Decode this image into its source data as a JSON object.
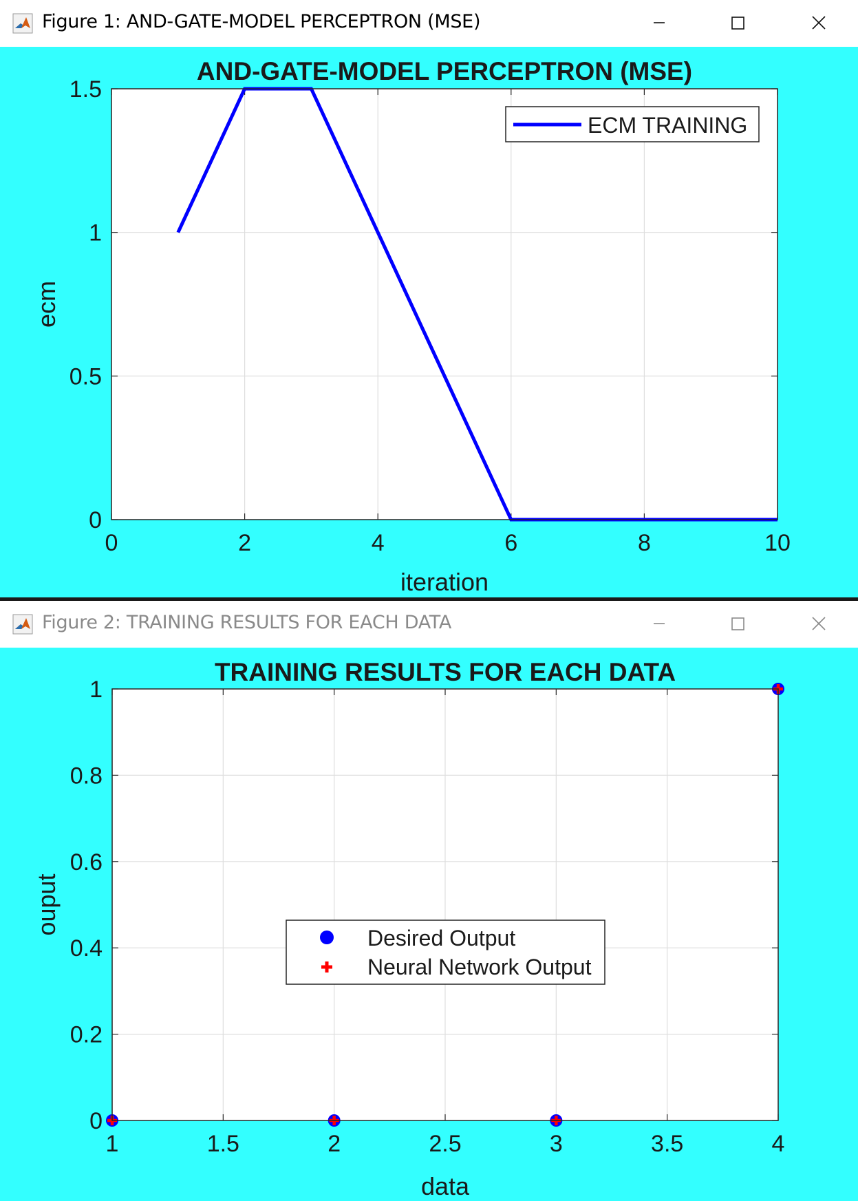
{
  "figure1": {
    "window_title": "Figure 1: AND-GATE-MODEL PERCEPTRON (MSE)",
    "icons": {
      "app": "matlab-icon",
      "minimize": "minimize-icon",
      "maximize": "maximize-icon",
      "close": "close-icon"
    },
    "background_color": "#33ffff",
    "chart_data": {
      "type": "line",
      "title": "AND-GATE-MODEL PERCEPTRON (MSE)",
      "xlabel": "iteration",
      "ylabel": "ecm",
      "xlim": [
        0,
        10
      ],
      "ylim": [
        0,
        1.5
      ],
      "xticks": [
        0,
        2,
        4,
        6,
        8,
        10
      ],
      "yticks": [
        0,
        0.5,
        1,
        1.5
      ],
      "xtick_labels": [
        "0",
        "2",
        "4",
        "6",
        "8",
        "10"
      ],
      "ytick_labels": [
        "0",
        "0.5",
        "1",
        "1.5"
      ],
      "grid": true,
      "legend_location": "top-right",
      "series": [
        {
          "name": "ECM TRAINING",
          "color": "#0000ff",
          "x": [
            1,
            2,
            3,
            4,
            5,
            6,
            7,
            8,
            9,
            10
          ],
          "y": [
            1,
            1.5,
            1.5,
            1,
            0.5,
            0,
            0,
            0,
            0,
            0
          ]
        }
      ]
    }
  },
  "figure2": {
    "window_title": "Figure 2: TRAINING RESULTS FOR EACH DATA",
    "icons": {
      "app": "matlab-icon",
      "minimize": "minimize-icon",
      "maximize": "maximize-icon",
      "close": "close-icon"
    },
    "background_color": "#33ffff",
    "chart_data": {
      "type": "scatter",
      "title": "TRAINING RESULTS FOR EACH DATA",
      "xlabel": "data",
      "ylabel": "ouput",
      "xlim": [
        1,
        4
      ],
      "ylim": [
        0,
        1
      ],
      "xticks": [
        1,
        1.5,
        2,
        2.5,
        3,
        3.5,
        4
      ],
      "yticks": [
        0,
        0.2,
        0.4,
        0.6,
        0.8,
        1
      ],
      "xtick_labels": [
        "1",
        "1.5",
        "2",
        "2.5",
        "3",
        "3.5",
        "4"
      ],
      "ytick_labels": [
        "0",
        "0.2",
        "0.4",
        "0.6",
        "0.8",
        "1"
      ],
      "grid": true,
      "legend_location": "center",
      "series": [
        {
          "name": "Desired Output",
          "marker": "circle",
          "color": "#0000ff",
          "x": [
            1,
            2,
            3,
            4
          ],
          "y": [
            0,
            0,
            0,
            1
          ]
        },
        {
          "name": "Neural Network Output",
          "marker": "plus",
          "color": "#ff0000",
          "x": [
            1,
            2,
            3,
            4
          ],
          "y": [
            0,
            0,
            0,
            1
          ]
        }
      ]
    }
  }
}
